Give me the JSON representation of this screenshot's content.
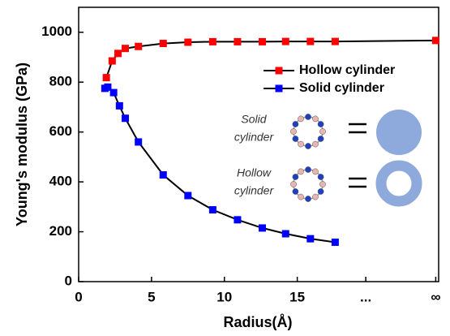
{
  "chart_data": {
    "type": "line",
    "xlabel": "Radius(Å)",
    "ylabel": "Young's modulus (GPa)",
    "xlim": [
      0,
      24.7
    ],
    "ylim": [
      0,
      1100
    ],
    "xticks": [
      0,
      5,
      10,
      15,
      {
        "value": 19.7,
        "label": "..."
      },
      {
        "value": 24.5,
        "label": "∞"
      }
    ],
    "yticks": [
      0,
      200,
      400,
      600,
      800,
      1000
    ],
    "line_color": "#000000",
    "legend": "upper right",
    "series": [
      {
        "name": "Hollow cylinder",
        "color": "#ff0000",
        "x": [
          1.9,
          2.3,
          2.7,
          3.2,
          4.1,
          5.8,
          7.5,
          9.2,
          10.9,
          12.6,
          14.2,
          15.9,
          17.6,
          24.5
        ],
        "values": [
          818,
          885,
          915,
          935,
          943,
          955,
          960,
          962,
          962,
          962,
          963,
          963,
          963,
          967
        ]
      },
      {
        "name": "Solid cylinder",
        "color": "#0000ff",
        "x": [
          1.8,
          2.0,
          2.4,
          2.8,
          3.2,
          4.1,
          5.8,
          7.5,
          9.2,
          10.9,
          12.6,
          14.2,
          15.9,
          17.6
        ],
        "values": [
          775,
          780,
          758,
          705,
          655,
          560,
          428,
          345,
          288,
          248,
          215,
          192,
          172,
          158
        ]
      }
    ],
    "annotations": [
      [
        "Solid",
        "cylinder"
      ],
      [
        "Hollow",
        "cylinder"
      ]
    ]
  }
}
